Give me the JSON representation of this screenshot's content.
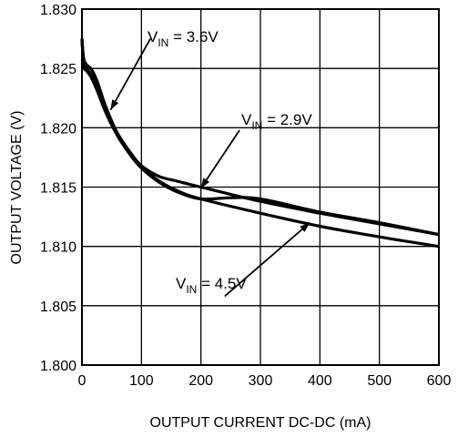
{
  "chart_data": {
    "type": "line",
    "title": "",
    "xlabel": "OUTPUT CURRENT DC-DC  (mA)",
    "ylabel": "OUTPUT VOLTAGE (V)",
    "xlim": [
      0,
      600
    ],
    "ylim": [
      1.8,
      1.83
    ],
    "xticks": [
      0,
      100,
      200,
      300,
      400,
      500,
      600
    ],
    "yticks": [
      1.8,
      1.805,
      1.81,
      1.815,
      1.82,
      1.825,
      1.83
    ],
    "yticklabels": [
      "1.800",
      "1.805",
      "1.810",
      "1.815",
      "1.820",
      "1.825",
      "1.830"
    ],
    "grid": true,
    "legend": "none",
    "line_color": "#000000",
    "series": [
      {
        "name": "VIN = 3.6V",
        "x": [
          0,
          3,
          8,
          15,
          25,
          40,
          60,
          80,
          100,
          130,
          160,
          200,
          300,
          400,
          500,
          600
        ],
        "y": [
          1.8275,
          1.8255,
          1.825,
          1.8245,
          1.8235,
          1.8215,
          1.8195,
          1.818,
          1.8167,
          1.8155,
          1.8147,
          1.814,
          1.8128,
          1.8117,
          1.8108,
          1.81
        ]
      },
      {
        "name": "VIN = 2.9V",
        "x": [
          0,
          3,
          8,
          15,
          25,
          40,
          60,
          80,
          100,
          130,
          160,
          200,
          300,
          400,
          500,
          600
        ],
        "y": [
          1.8275,
          1.8258,
          1.8253,
          1.825,
          1.824,
          1.8218,
          1.8195,
          1.818,
          1.8168,
          1.8159,
          1.8155,
          1.815,
          1.8138,
          1.8128,
          1.8119,
          1.811
        ]
      },
      {
        "name": "VIN = 4.5V",
        "x": [
          0,
          3,
          8,
          15,
          25,
          40,
          60,
          80,
          100,
          130,
          160,
          200,
          250,
          300,
          400,
          500,
          600
        ],
        "y": [
          1.8275,
          1.8252,
          1.8248,
          1.8243,
          1.8232,
          1.8213,
          1.8193,
          1.8178,
          1.8166,
          1.8154,
          1.8146,
          1.814,
          1.8141,
          1.814,
          1.8129,
          1.812,
          1.811
        ]
      }
    ],
    "annotations": [
      {
        "main": "V",
        "sub": "IN",
        "rest": " = 3.6V"
      },
      {
        "main": "V",
        "sub": "IN",
        "rest": " = 2.9V"
      },
      {
        "main": "V",
        "sub": "IN",
        "rest": " = 4.5V"
      }
    ]
  }
}
